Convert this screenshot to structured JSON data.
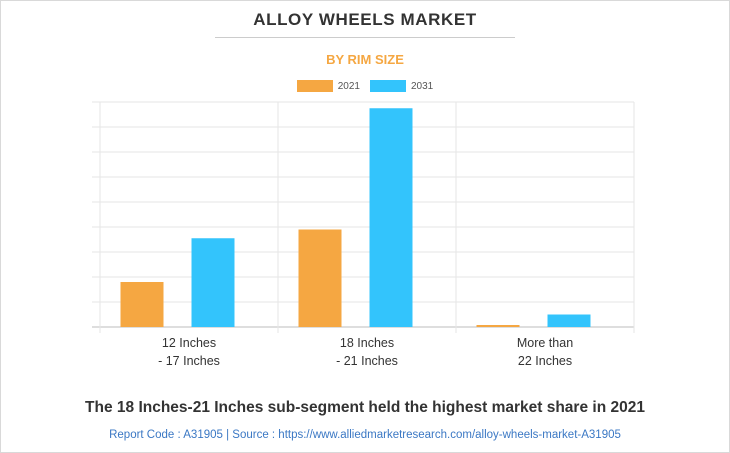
{
  "header": {
    "title": "ALLOY WHEELS MARKET",
    "subtitle": "BY RIM SIZE"
  },
  "colors": {
    "series_2021": "#f5a742",
    "series_2031": "#33c4fc",
    "subtitle": "#f5a742",
    "source_link": "#3b78c4"
  },
  "chart_data": {
    "type": "bar",
    "categories": [
      [
        "12 Inches",
        "- 17 Inches"
      ],
      [
        "18 Inches",
        "- 21 Inches"
      ],
      [
        "More than",
        "22 Inches"
      ]
    ],
    "series": [
      {
        "name": "2021",
        "values": [
          1.8,
          3.9,
          0.08
        ]
      },
      {
        "name": "2031",
        "values": [
          3.55,
          8.75,
          0.5
        ]
      }
    ],
    "ylim": [
      0,
      9
    ],
    "grid": true,
    "legend_position": "top-center",
    "xlabel": "",
    "ylabel": ""
  },
  "footer": {
    "caption": "The 18 Inches-21 Inches sub-segment held the highest market share in 2021",
    "source": "Report Code : A31905  |  Source : https://www.alliedmarketresearch.com/alloy-wheels-market-A31905"
  }
}
